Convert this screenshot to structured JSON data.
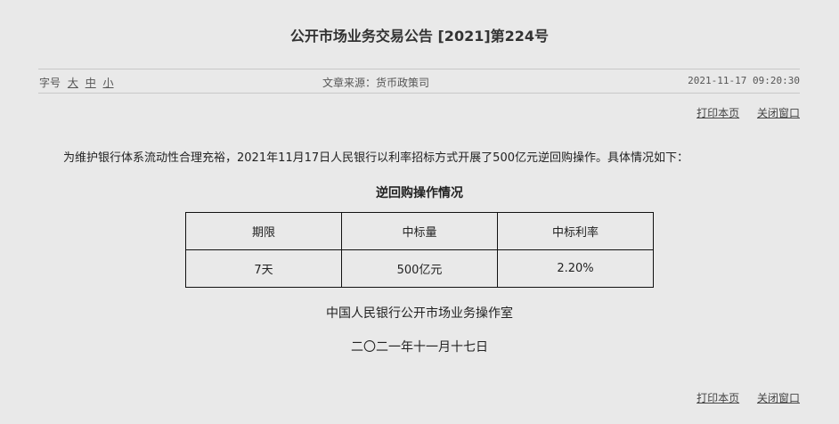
{
  "title": "公开市场业务交易公告 [2021]第224号",
  "font_size": {
    "label": "字号",
    "options": [
      "大",
      "中",
      "小"
    ]
  },
  "source": "文章来源：货币政策司",
  "datetime": "2021-11-17 09:20:30",
  "actions": {
    "print": "打印本页",
    "close": "关闭窗口"
  },
  "body": "为维护银行体系流动性合理充裕，2021年11月17日人民银行以利率招标方式开展了500亿元逆回购操作。具体情况如下：",
  "table": {
    "caption": "逆回购操作情况",
    "headers": [
      "期限",
      "中标量",
      "中标利率"
    ],
    "rows": [
      [
        "7天",
        "500亿元",
        "2.20%"
      ]
    ]
  },
  "signature": "中国人民银行公开市场业务操作室",
  "date": "二〇二一年十一月十七日"
}
